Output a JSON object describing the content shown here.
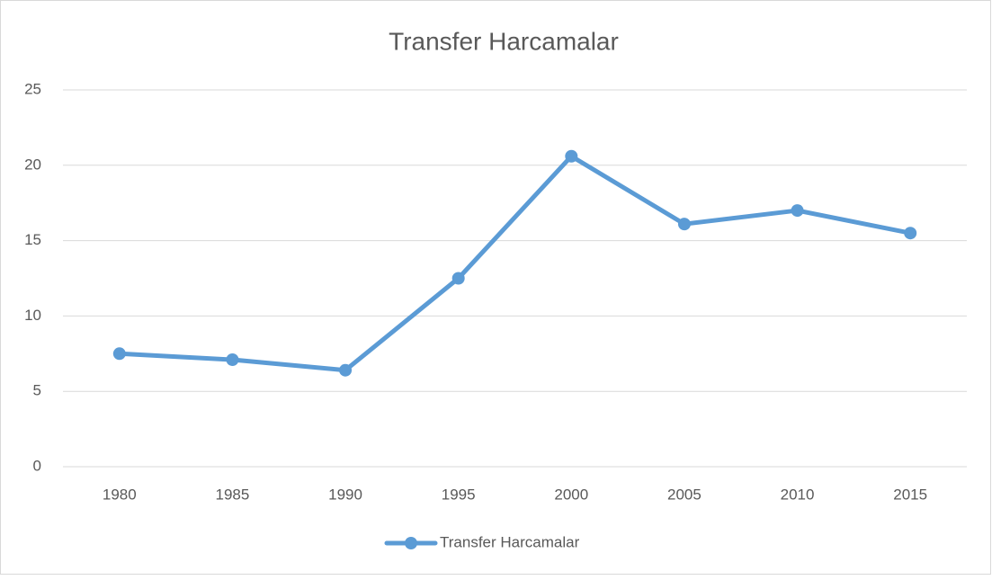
{
  "chart_data": {
    "type": "line",
    "title": "Transfer Harcamalar",
    "categories": [
      "1980",
      "1985",
      "1990",
      "1995",
      "2000",
      "2005",
      "2010",
      "2015"
    ],
    "series": [
      {
        "name": "Transfer Harcamalar",
        "color": "#5b9bd5",
        "values": [
          7.5,
          7.1,
          6.4,
          12.5,
          20.6,
          16.1,
          17.0,
          15.5
        ]
      }
    ],
    "ylim": [
      0,
      25
    ],
    "yticks": [
      0,
      5,
      10,
      15,
      20,
      25
    ],
    "grid": true,
    "legend": "bottom"
  }
}
